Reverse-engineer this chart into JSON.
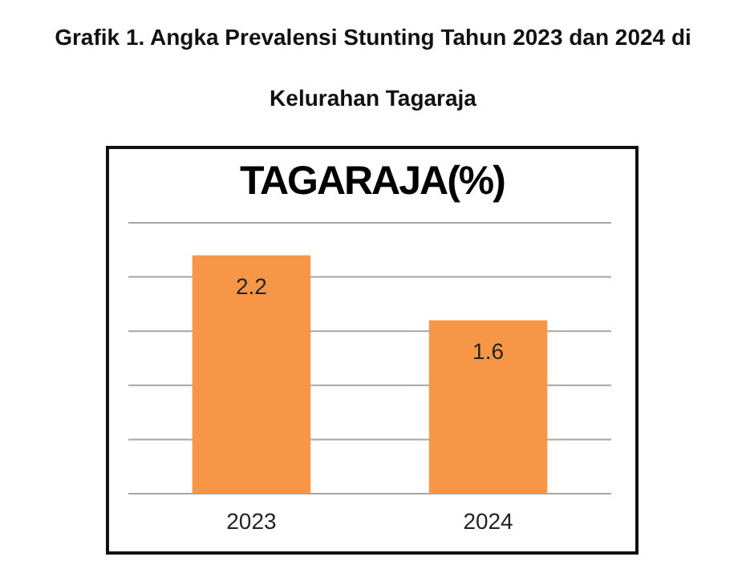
{
  "chart_data": {
    "type": "bar",
    "title": "Grafik 1. Angka Prevalensi Stunting Tahun 2023 dan 2024 di Kelurahan Tagaraja",
    "subtitle": "TAGARAJA(%)",
    "categories": [
      "2023",
      "2024"
    ],
    "values": [
      2.2,
      1.6
    ],
    "color": "#f79646",
    "ylim": [
      0,
      2.5
    ],
    "yticks": [
      {
        "value": 0,
        "label": null
      },
      {
        "value": 0.5,
        "label": null
      },
      {
        "value": 1,
        "label": null
      },
      {
        "value": 1.5,
        "label": null
      },
      {
        "value": 2,
        "label": null
      },
      {
        "value": 2.5,
        "label": null
      }
    ],
    "tick_labels": "x",
    "grid": true,
    "data_labels": true
  }
}
